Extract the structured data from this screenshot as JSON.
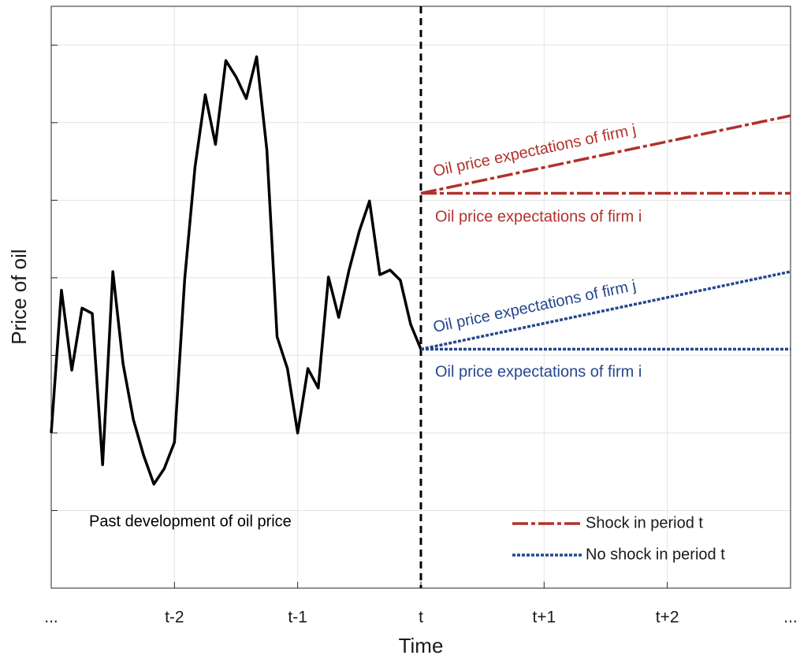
{
  "chart_data": {
    "type": "line",
    "xlabel": "Time",
    "ylabel": "Price of oil",
    "xlim": [
      -3,
      3
    ],
    "ylim": [
      0,
      7.5
    ],
    "xticks": [
      {
        "value": -3,
        "label": "..."
      },
      {
        "value": -2,
        "label": "t-2"
      },
      {
        "value": -1,
        "label": "t-1"
      },
      {
        "value": 0,
        "label": "t"
      },
      {
        "value": 1,
        "label": "t+1"
      },
      {
        "value": 2,
        "label": "t+2"
      },
      {
        "value": 3,
        "label": "..."
      }
    ],
    "yticks": [
      1,
      2,
      3,
      4,
      5,
      6,
      7
    ],
    "show_ytick_labels": false,
    "grid": true,
    "vline": 0,
    "legend_position": "lower right",
    "annotations": [
      "Past development of oil price",
      "Oil price expectations of firm j",
      "Oil price expectations of firm i",
      "Oil price expectations of firm j",
      "Oil price expectations of firm i"
    ],
    "series": [
      {
        "color": "#000000",
        "dash": "solid",
        "x": [
          -3,
          -2.917,
          -2.833,
          -2.75,
          -2.667,
          -2.583,
          -2.5,
          -2.417,
          -2.333,
          -2.25,
          -2.167,
          -2.083,
          -2,
          -1.917,
          -1.833,
          -1.75,
          -1.667,
          -1.583,
          -1.5,
          -1.417,
          -1.333,
          -1.25,
          -1.167,
          -1.083,
          -1,
          -0.917,
          -0.833,
          -0.75,
          -0.667,
          -0.583,
          -0.5,
          -0.417,
          -0.333,
          -0.25,
          -0.167,
          -0.083,
          0
        ],
        "values": [
          2.0,
          3.84,
          2.81,
          3.61,
          3.54,
          1.59,
          4.08,
          2.89,
          2.17,
          1.71,
          1.34,
          1.54,
          1.88,
          3.98,
          5.43,
          6.36,
          5.72,
          6.8,
          6.59,
          6.31,
          6.85,
          5.65,
          3.24,
          2.83,
          2.0,
          2.83,
          2.58,
          4.01,
          3.49,
          4.1,
          4.6,
          4.99,
          4.04,
          4.1,
          3.97,
          3.4,
          3.08
        ]
      },
      {
        "name": "Shock in period t",
        "color": "#b2312b",
        "dash": "dashdot",
        "x": [
          0,
          3
        ],
        "values": [
          5.09,
          6.09
        ]
      },
      {
        "color": "#b2312b",
        "dash": "dashdot",
        "x": [
          0,
          3
        ],
        "values": [
          5.09,
          5.09
        ]
      },
      {
        "name": "No shock in period t",
        "color": "#25468f",
        "dash": "dotted",
        "x": [
          0,
          3
        ],
        "values": [
          3.08,
          4.08
        ]
      },
      {
        "color": "#25468f",
        "dash": "dotted",
        "x": [
          0,
          3
        ],
        "values": [
          3.08,
          3.08
        ]
      }
    ]
  }
}
